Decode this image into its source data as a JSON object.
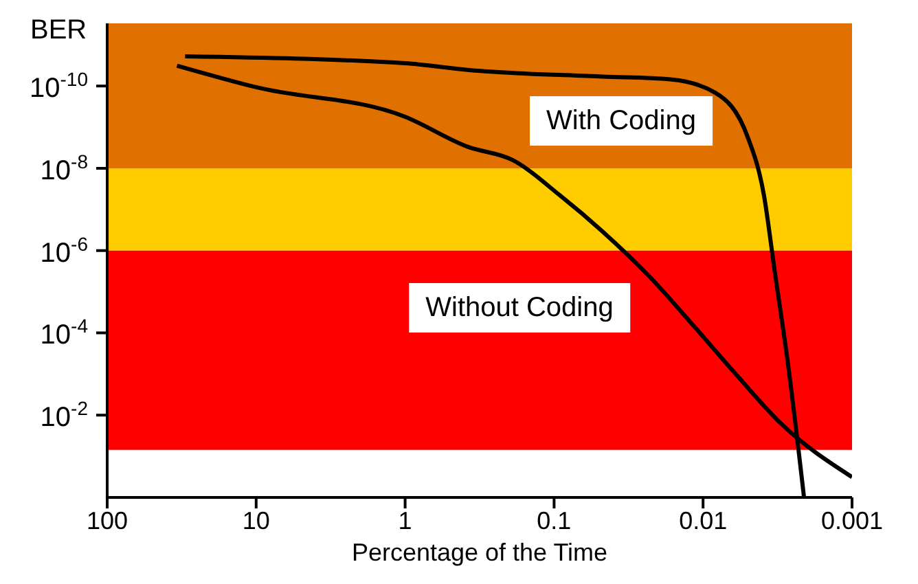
{
  "chart_data": {
    "type": "line",
    "xlabel": "Percentage of the Time",
    "ylabel": "BER",
    "log": "xy",
    "marker": "none",
    "line_style": "solid",
    "xlim": [
      100,
      0.001
    ],
    "xticks": [
      100,
      10,
      1,
      0.1,
      0.01,
      0.001
    ],
    "ylim": [
      1,
      3e-12
    ],
    "yticks": [
      {
        "value": 1e-10,
        "label": "10$^{-10}$"
      },
      {
        "value": 1e-08,
        "label": "10$^{-8}$"
      },
      {
        "value": 1e-06,
        "label": "10$^{-6}$"
      },
      {
        "value": 0.0001,
        "label": "10$^{-4}$"
      },
      {
        "value": 0.01,
        "label": "10$^{-2}$"
      }
    ],
    "bands": [
      {
        "axis": "y",
        "from": 3e-12,
        "to": 1e-08,
        "color": "#e07000"
      },
      {
        "axis": "y",
        "from": 1e-08,
        "to": 1e-06,
        "color": "#ffcc00"
      },
      {
        "axis": "y",
        "from": 1e-06,
        "to": 0.07,
        "color": "#ff0000"
      }
    ],
    "series": [
      {
        "color": "#000000",
        "x": [
          30,
          1,
          0.37,
          0.047,
          0.0166,
          0.0083,
          0.005,
          0.0039,
          0.0033,
          0.0027,
          0.0021
        ],
        "values": [
          1.9e-11,
          2.8e-11,
          4.1e-11,
          5.9e-11,
          6.9e-11,
          1.45e-10,
          1.8e-09,
          4.6e-08,
          3.3e-06,
          0.00052,
          1
        ]
      },
      {
        "color": "#000000",
        "x": [
          34,
          10,
          1,
          0.38,
          0.19,
          0.091,
          0.047,
          0.023,
          0.0115,
          0.0059,
          0.003,
          0.001
        ],
        "values": [
          3.2e-11,
          1.07e-10,
          5.6e-10,
          3e-09,
          6.3e-09,
          4.6e-08,
          3.5e-07,
          4.2e-06,
          6.9e-05,
          0.0011,
          0.016,
          0.32
        ]
      }
    ],
    "annotations": [
      "With Coding",
      "Without Coding"
    ]
  }
}
